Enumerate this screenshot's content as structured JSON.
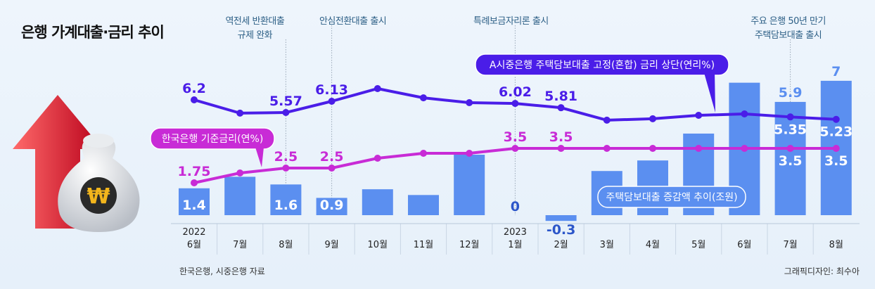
{
  "title": "은행 가계대출·금리 추이",
  "source": "한국은행, 시중은행 자료",
  "credit": "그래픽디자인: 최수아",
  "chart_data": {
    "type": "bar+line",
    "categories": [
      {
        "year": "2022",
        "month": "6월"
      },
      {
        "month": "7월"
      },
      {
        "month": "8월"
      },
      {
        "month": "9월"
      },
      {
        "month": "10월"
      },
      {
        "month": "11월"
      },
      {
        "month": "12월"
      },
      {
        "year": "2023",
        "month": "1월"
      },
      {
        "month": "2월"
      },
      {
        "month": "3월"
      },
      {
        "month": "4월"
      },
      {
        "month": "5월"
      },
      {
        "month": "6월"
      },
      {
        "month": "7월"
      },
      {
        "month": "8월"
      }
    ],
    "series": [
      {
        "name": "주택담보대출 증감액 추이(조원)",
        "type": "bar",
        "color": "#5b8ff0",
        "values": [
          1.4,
          2.0,
          1.6,
          0.9,
          1.35,
          1.05,
          3.15,
          0,
          -0.3,
          2.3,
          2.85,
          4.25,
          6.9,
          5.9,
          7
        ],
        "labels": [
          "1.4",
          null,
          "1.6",
          "0.9",
          null,
          null,
          null,
          "0",
          "-0.3",
          null,
          null,
          null,
          null,
          "5.9",
          "7"
        ]
      },
      {
        "name": "A시중은행 주택담보대출 고정(혼합) 금리 상단(연리%)",
        "type": "line",
        "color": "#4a1de8",
        "values": [
          6.2,
          5.54,
          5.57,
          6.13,
          6.76,
          6.3,
          6.06,
          6.02,
          5.81,
          5.19,
          5.26,
          5.43,
          5.5,
          5.35,
          5.23
        ],
        "labels": [
          "6.2",
          null,
          "5.57",
          "6.13",
          null,
          null,
          null,
          "6.02",
          "5.81",
          null,
          null,
          null,
          null,
          "5.35",
          "5.23"
        ]
      },
      {
        "name": "한국은행 기준금리(연%)",
        "type": "line",
        "color": "#c82bd6",
        "values": [
          1.75,
          2.25,
          2.5,
          2.5,
          3.0,
          3.25,
          3.25,
          3.5,
          3.5,
          3.5,
          3.5,
          3.5,
          3.5,
          3.5,
          3.5
        ],
        "labels": [
          "1.75",
          null,
          "2.5",
          "2.5",
          null,
          null,
          null,
          "3.5",
          "3.5",
          null,
          null,
          null,
          null,
          "3.5",
          "3.5"
        ]
      }
    ],
    "annotations": [
      {
        "index": 2,
        "lines": [
          "역전세 반환대출",
          "규제 완화"
        ]
      },
      {
        "index": 3,
        "lines": [
          "안심전환대출 출시"
        ]
      },
      {
        "index": 7,
        "lines": [
          "특례보금자리론 출시"
        ]
      },
      {
        "index": 13,
        "lines": [
          "주요 은행 50년 만기",
          "주택담보대출 출시"
        ]
      }
    ],
    "grid": false
  }
}
